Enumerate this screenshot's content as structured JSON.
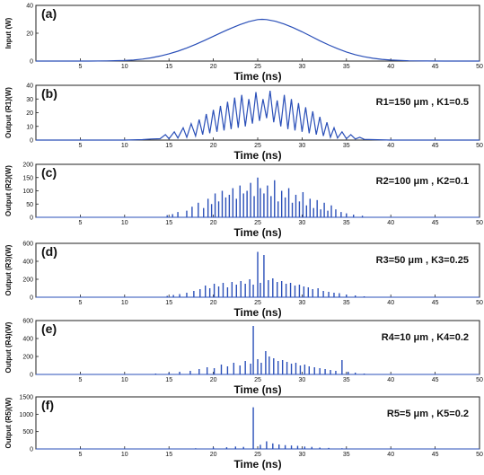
{
  "chart_data": [
    {
      "type": "line",
      "panel_label": "(a)",
      "ylabel": "Input (W)",
      "xlabel": "Time (ns)",
      "annotation": "",
      "xlim": [
        0,
        50
      ],
      "ylim": [
        0,
        40
      ],
      "xticks": [
        5,
        10,
        15,
        20,
        25,
        30,
        35,
        40,
        45,
        50
      ],
      "yticks": [
        0,
        20,
        40
      ],
      "series": [
        {
          "x": [
            0,
            2,
            4,
            6,
            8,
            10,
            11,
            12,
            13,
            14,
            15,
            16,
            17,
            18,
            19,
            20,
            21,
            22,
            23,
            24,
            25,
            25.5,
            26,
            27,
            28,
            29,
            30,
            31,
            32,
            33,
            34,
            35,
            36,
            37,
            38,
            39,
            40,
            42,
            44,
            46,
            48,
            50
          ],
          "y": [
            0,
            0,
            0,
            0.02,
            0.1,
            0.4,
            0.8,
            1.4,
            2.3,
            3.6,
            5.2,
            7.1,
            9.4,
            12,
            14.8,
            17.8,
            20.8,
            23.6,
            26.2,
            28.3,
            29.8,
            30,
            29.8,
            28.6,
            26.6,
            24,
            21,
            17.8,
            14.6,
            11.6,
            8.9,
            6.5,
            4.6,
            3.1,
            2,
            1.2,
            0.7,
            0.2,
            0.05,
            0,
            0,
            0
          ]
        }
      ]
    },
    {
      "type": "line",
      "panel_label": "(b)",
      "ylabel": "Output (R1)(W)",
      "xlabel": "Time (ns)",
      "annotation": "R1=150 μm , K1=0.5",
      "xlim": [
        0,
        50
      ],
      "ylim": [
        0,
        40
      ],
      "xticks": [
        5,
        10,
        15,
        20,
        25,
        30,
        35,
        40,
        45,
        50
      ],
      "yticks": [
        0,
        10,
        20,
        30,
        40
      ],
      "series": [
        {
          "x": [
            0,
            5,
            10,
            12,
            13,
            14,
            14.6,
            15,
            15.6,
            16,
            16.6,
            17,
            17.5,
            18,
            18.4,
            18.8,
            19.2,
            19.6,
            20,
            20.4,
            20.8,
            21.2,
            21.6,
            22,
            22.4,
            22.8,
            23.2,
            23.6,
            24,
            24.4,
            24.8,
            25.2,
            25.6,
            26,
            26.4,
            26.8,
            27.2,
            27.6,
            28,
            28.4,
            28.8,
            29.2,
            29.6,
            30,
            30.4,
            30.8,
            31.2,
            31.6,
            32,
            32.4,
            32.8,
            33.2,
            33.6,
            34,
            34.5,
            35,
            35.5,
            36,
            36.5,
            37,
            38,
            40,
            45,
            50
          ],
          "y": [
            0,
            0,
            0,
            0.3,
            0.8,
            1,
            4,
            1,
            6,
            1.5,
            9,
            2,
            12,
            3,
            15,
            4,
            19,
            5,
            22,
            6,
            25,
            7,
            28,
            8,
            31,
            9,
            33,
            10,
            30,
            12,
            35,
            14,
            30,
            16,
            36,
            13,
            29,
            10,
            33,
            8,
            30,
            7,
            27,
            6,
            24,
            5,
            21,
            4,
            17,
            3,
            13,
            2,
            9,
            1.5,
            6,
            1,
            4,
            0.8,
            2,
            0.5,
            0.3,
            0,
            0,
            0
          ]
        }
      ]
    },
    {
      "type": "bar",
      "panel_label": "(c)",
      "ylabel": "Output (R2)(W)",
      "xlabel": "Time (ns)",
      "annotation": "R2=100 μm , K2=0.1",
      "xlim": [
        0,
        50
      ],
      "ylim": [
        0,
        200
      ],
      "xticks": [
        5,
        10,
        15,
        20,
        25,
        30,
        35,
        40,
        45,
        50
      ],
      "yticks": [
        0,
        50,
        100,
        150,
        200
      ],
      "x": [
        14.8,
        15.4,
        16,
        17,
        17.6,
        18.3,
        18.9,
        19.4,
        19.8,
        20.2,
        20.6,
        21,
        21.4,
        21.8,
        22.2,
        22.6,
        23,
        23.4,
        23.8,
        24.2,
        24.6,
        25,
        25.3,
        25.7,
        26.1,
        26.5,
        26.9,
        27.3,
        27.7,
        28.1,
        28.5,
        28.9,
        29.3,
        29.7,
        30.1,
        30.5,
        30.9,
        31.3,
        31.7,
        32.1,
        32.5,
        32.9,
        33.3,
        33.8,
        34.4,
        35,
        35.8,
        36.8
      ],
      "values": [
        8,
        12,
        20,
        25,
        40,
        55,
        35,
        70,
        50,
        90,
        60,
        100,
        75,
        85,
        110,
        70,
        120,
        90,
        100,
        130,
        80,
        150,
        110,
        90,
        120,
        80,
        140,
        60,
        100,
        75,
        110,
        55,
        85,
        60,
        95,
        45,
        70,
        35,
        65,
        30,
        55,
        25,
        45,
        30,
        20,
        15,
        10,
        6
      ]
    },
    {
      "type": "bar",
      "panel_label": "(d)",
      "ylabel": "Output (R3)(W)",
      "xlabel": "Time (ns)",
      "annotation": "R3=50 μm , K3=0.25",
      "xlim": [
        0,
        50
      ],
      "ylim": [
        0,
        600
      ],
      "xticks": [
        5,
        10,
        15,
        20,
        25,
        30,
        35,
        40,
        45,
        50
      ],
      "yticks": [
        0,
        200,
        400,
        600
      ],
      "x": [
        14.8,
        15.5,
        16.2,
        17,
        17.8,
        18.5,
        19.1,
        19.6,
        20.1,
        20.6,
        21.1,
        21.6,
        22.1,
        22.6,
        23.1,
        23.6,
        24.1,
        24.5,
        25,
        25.3,
        25.7,
        26.2,
        26.7,
        27.2,
        27.7,
        28.2,
        28.7,
        29.2,
        29.7,
        30.2,
        30.7,
        31.2,
        31.8,
        32.4,
        33,
        33.6,
        34.2,
        35,
        36,
        37
      ],
      "values": [
        15,
        25,
        35,
        50,
        70,
        90,
        130,
        100,
        150,
        120,
        160,
        110,
        170,
        140,
        180,
        150,
        200,
        140,
        505,
        160,
        470,
        190,
        210,
        170,
        180,
        150,
        160,
        130,
        140,
        120,
        110,
        90,
        100,
        70,
        60,
        50,
        45,
        30,
        20,
        10
      ]
    },
    {
      "type": "bar",
      "panel_label": "(e)",
      "ylabel": "Output (R4)(W)",
      "xlabel": "Time (ns)",
      "annotation": "R4=10 μm , K4=0.2",
      "xlim": [
        0,
        50
      ],
      "ylim": [
        0,
        600
      ],
      "xticks": [
        5,
        10,
        15,
        20,
        25,
        30,
        35,
        40,
        45,
        50
      ],
      "yticks": [
        0,
        200,
        400,
        600
      ],
      "x": [
        13.5,
        15,
        16.2,
        17.4,
        18.4,
        19.3,
        20.1,
        20.9,
        21.6,
        22.3,
        23,
        23.6,
        24.2,
        24.5,
        25,
        25.4,
        25.9,
        26.3,
        26.8,
        27.3,
        27.8,
        28.3,
        28.8,
        29.3,
        29.8,
        30.3,
        30.8,
        31.4,
        32,
        32.6,
        33.2,
        33.8,
        34.5,
        35.2,
        36,
        37
      ],
      "values": [
        10,
        20,
        30,
        40,
        60,
        80,
        70,
        110,
        90,
        130,
        100,
        150,
        120,
        540,
        170,
        130,
        260,
        200,
        180,
        150,
        160,
        140,
        120,
        130,
        100,
        110,
        90,
        80,
        70,
        60,
        50,
        40,
        160,
        30,
        20,
        10
      ]
    },
    {
      "type": "bar",
      "panel_label": "(f)",
      "ylabel": "Output (R5)(W)",
      "xlabel": "Time (ns)",
      "annotation": "R5=5 μm , K5=0.2",
      "xlim": [
        0,
        50
      ],
      "ylim": [
        0,
        1500
      ],
      "xticks": [
        5,
        10,
        15,
        20,
        25,
        30,
        35,
        40,
        45,
        50
      ],
      "yticks": [
        0,
        500,
        1000,
        1500
      ],
      "x": [
        15,
        18,
        20,
        21.5,
        22.5,
        23.4,
        24.5,
        25.3,
        26,
        26.7,
        27.4,
        28.1,
        28.8,
        29.5,
        30.3,
        31.1,
        32,
        33,
        34.5,
        36
      ],
      "values": [
        10,
        20,
        40,
        50,
        70,
        60,
        1200,
        120,
        220,
        160,
        130,
        110,
        100,
        90,
        70,
        60,
        40,
        30,
        20,
        10
      ]
    }
  ]
}
